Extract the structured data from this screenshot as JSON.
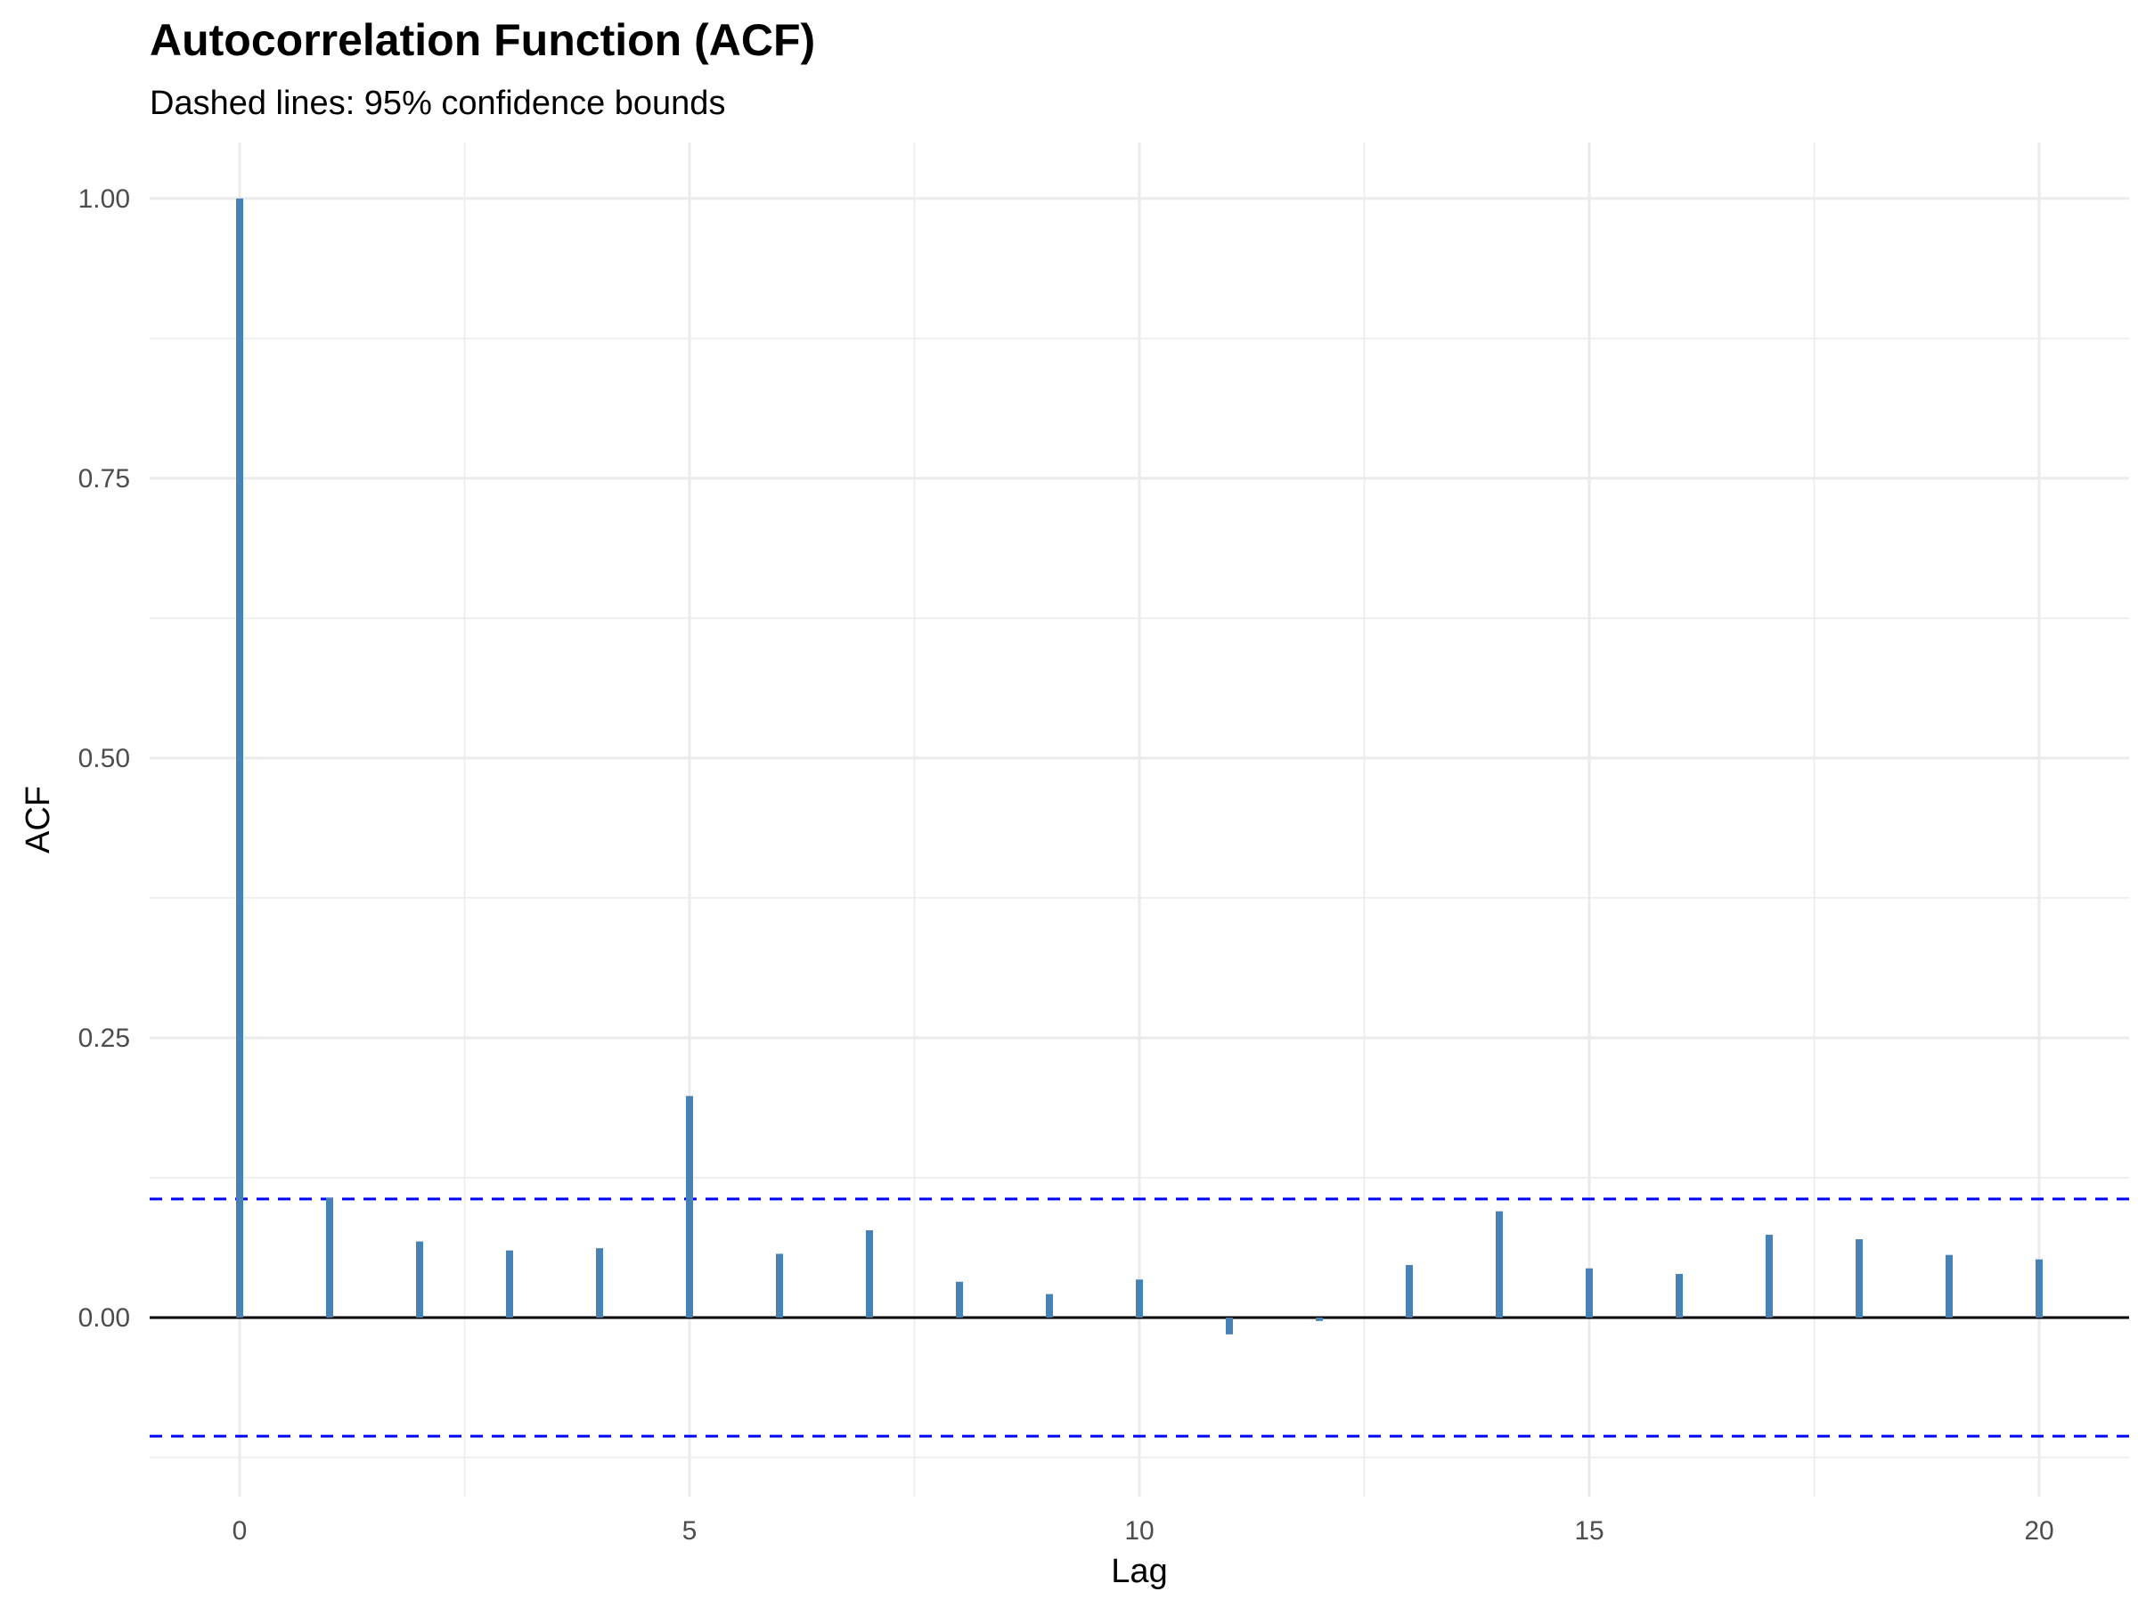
{
  "chart_data": {
    "type": "bar",
    "title": "Autocorrelation Function (ACF)",
    "subtitle": "Dashed lines: 95% confidence bounds",
    "xlabel": "Lag",
    "ylabel": "ACF",
    "x": [
      0,
      1,
      2,
      3,
      4,
      5,
      6,
      7,
      8,
      9,
      10,
      11,
      12,
      13,
      14,
      15,
      16,
      17,
      18,
      19,
      20
    ],
    "values": [
      1.0,
      0.107,
      0.068,
      0.06,
      0.062,
      0.198,
      0.057,
      0.078,
      0.032,
      0.021,
      0.034,
      -0.015,
      -0.003,
      0.047,
      0.095,
      0.044,
      0.039,
      0.074,
      0.07,
      0.056,
      0.052
    ],
    "confidence_bound": 0.106,
    "xlim": [
      -1,
      21
    ],
    "ylim": [
      -0.16,
      1.05
    ],
    "x_ticks": [
      0,
      5,
      10,
      15,
      20
    ],
    "x_tick_labels": [
      "0",
      "5",
      "10",
      "15",
      "20"
    ],
    "y_ticks": [
      0,
      0.25,
      0.5,
      0.75,
      1.0
    ],
    "y_tick_labels": [
      "0.00",
      "0.25",
      "0.50",
      "0.75",
      "1.00"
    ],
    "grid": true,
    "legend": "none",
    "colors": {
      "bars": "#4682b4",
      "confidence": "#0000ff",
      "zero_line": "#000000",
      "grid": "#ebebeb"
    }
  }
}
